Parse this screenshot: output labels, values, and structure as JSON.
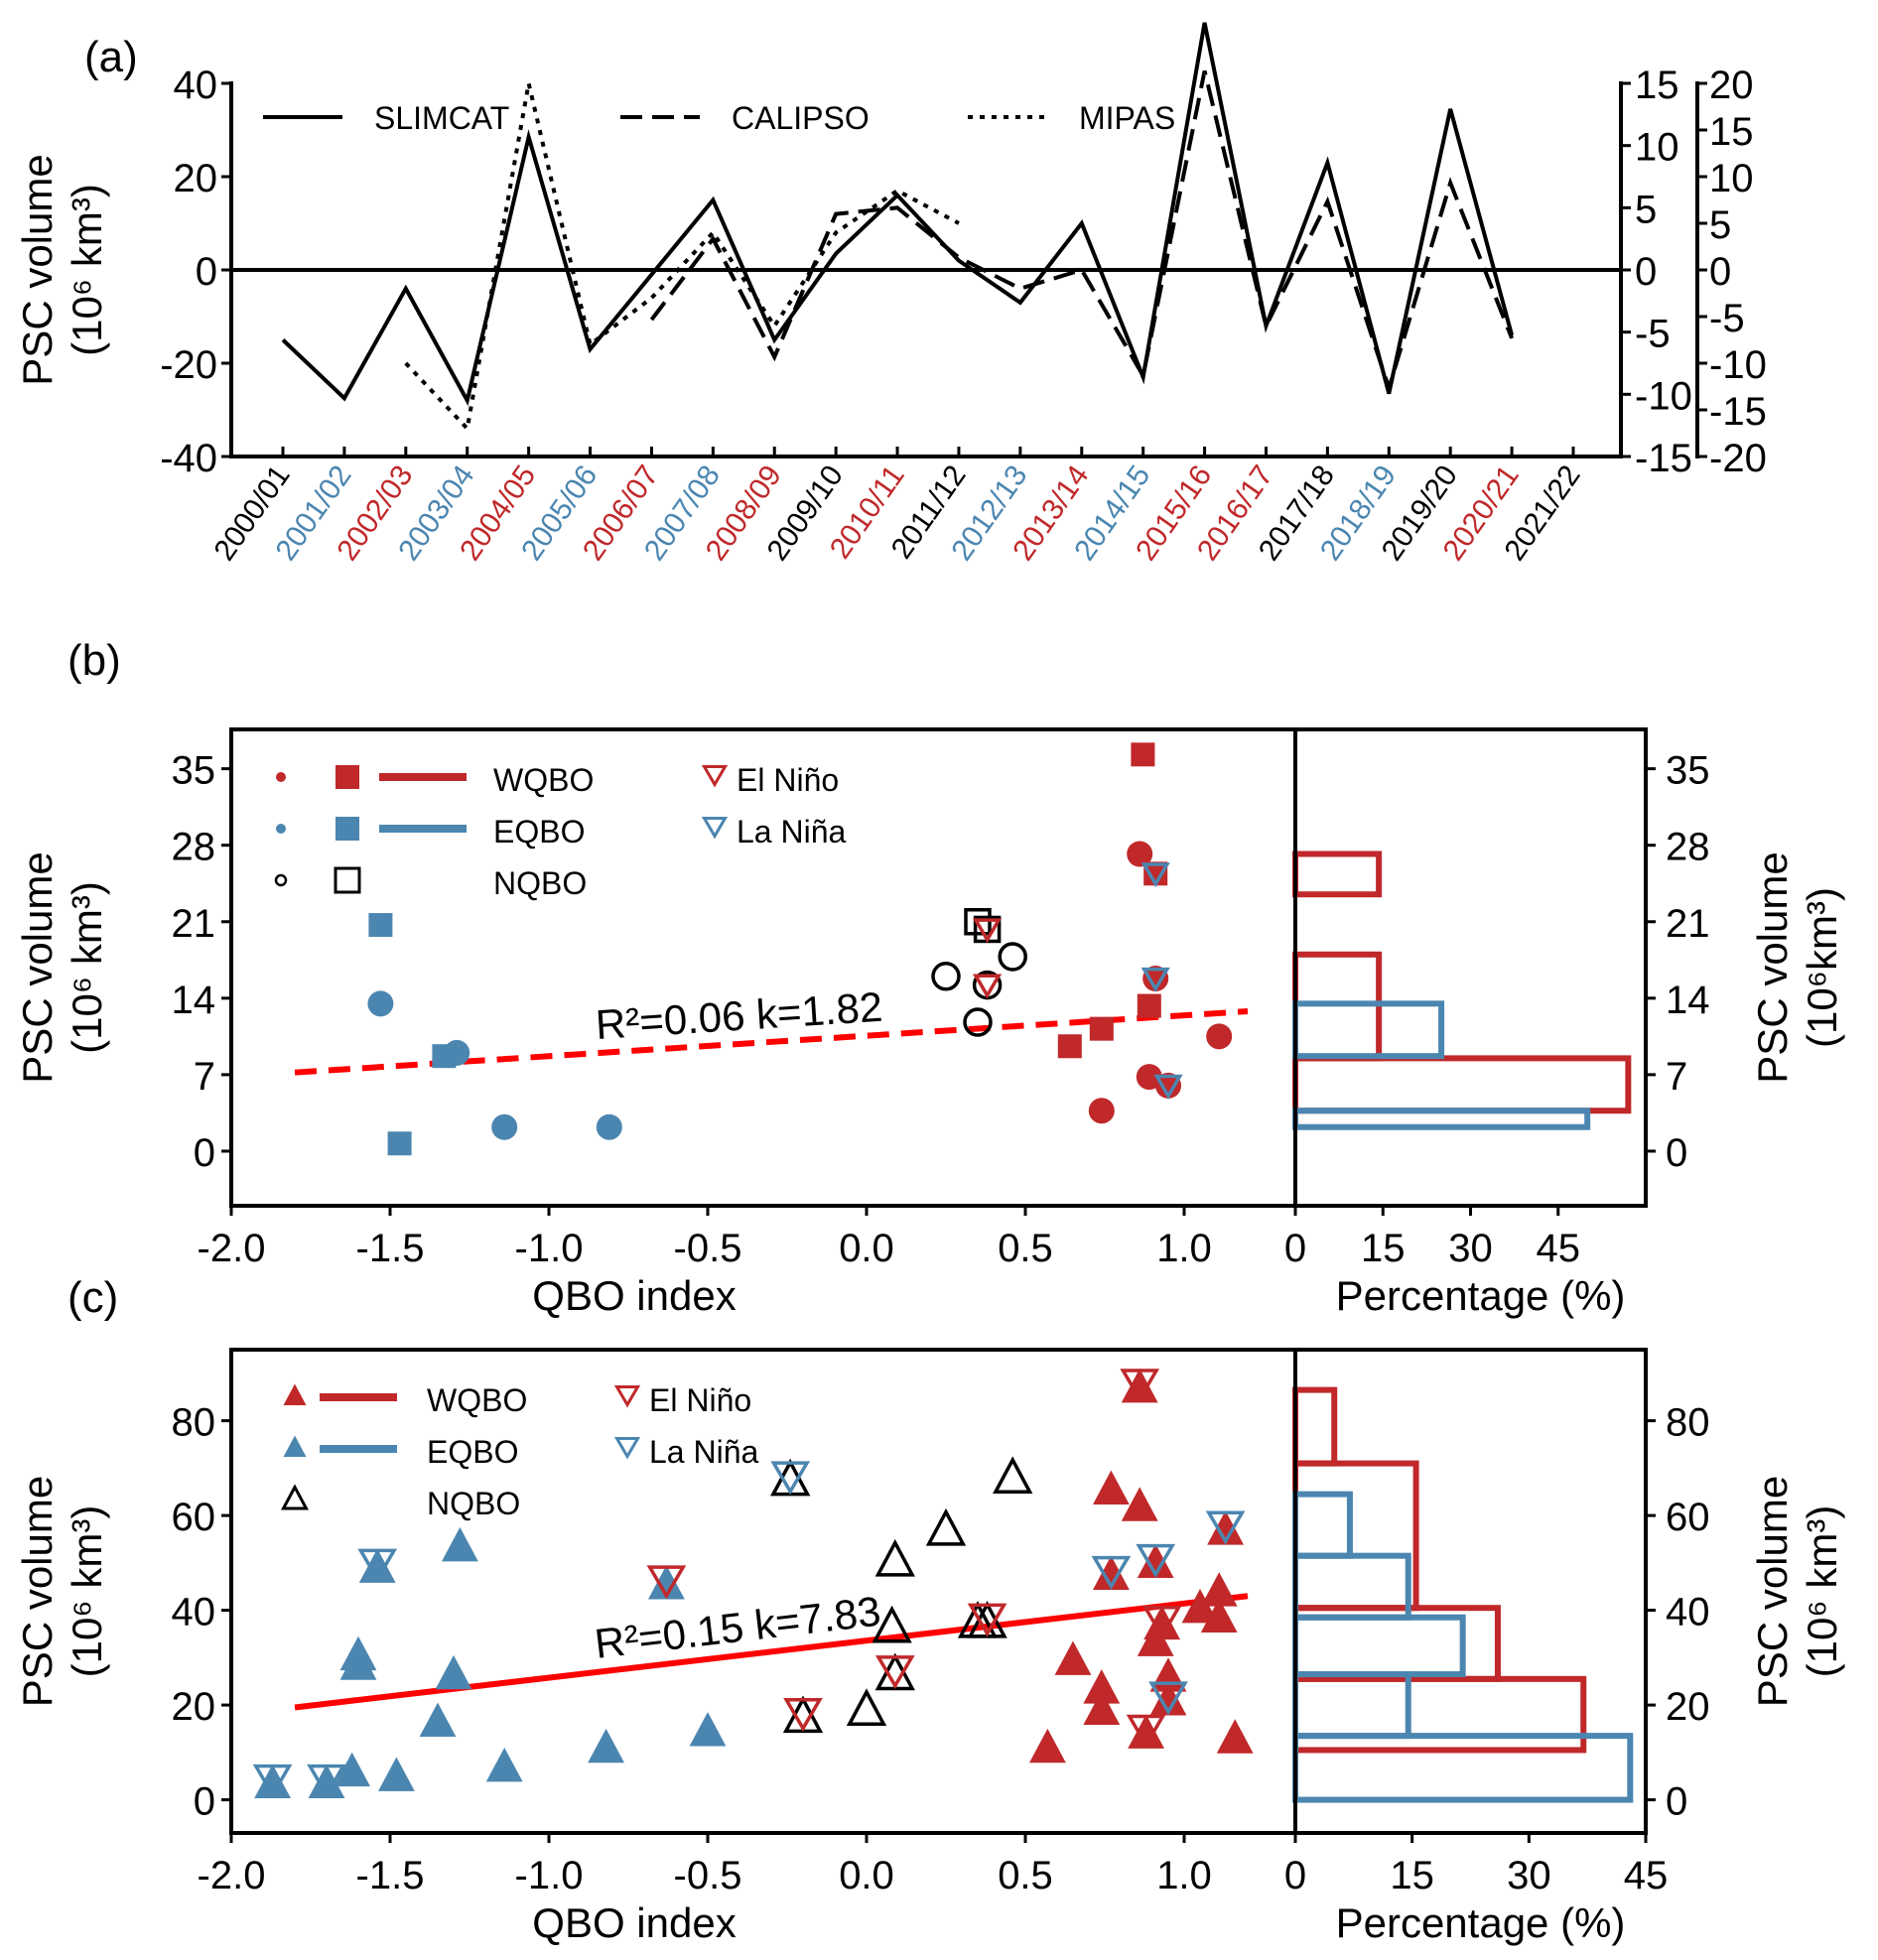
{
  "colors": {
    "warm": "#c0282a",
    "cold": "#4b86b0",
    "neutral": "#000000",
    "fit": "#ff0000"
  },
  "chart_data": [
    {
      "panel": "(a)",
      "type": "line",
      "ylabel": "PSC volume",
      "ylabel_unit": "(10⁶ km³)",
      "ylim": [
        -40,
        40
      ],
      "yticks": [
        "40",
        "20",
        "0",
        "-20",
        "-40"
      ],
      "right_axes": [
        {
          "name": "CALIPSO",
          "ylim": [
            -15,
            15
          ],
          "ticks": [
            "15",
            "10",
            "5",
            "0",
            "-5",
            "-10",
            "-15"
          ]
        },
        {
          "name": "MIPAS",
          "ylim": [
            -20,
            20
          ],
          "ticks": [
            "20",
            "15",
            "10",
            "5",
            "0",
            "-5",
            "-10",
            "-15",
            "-20"
          ]
        }
      ],
      "x": [
        "2000/01",
        "2001/02",
        "2002/03",
        "2003/04",
        "2004/05",
        "2005/06",
        "2006/07",
        "2007/08",
        "2008/09",
        "2009/10",
        "2010/11",
        "2011/12",
        "2012/13",
        "2013/14",
        "2014/15",
        "2015/16",
        "2016/17",
        "2017/18",
        "2018/19",
        "2019/20",
        "2020/21",
        "2021/22"
      ],
      "x_label_colors": [
        "neutral",
        "cold",
        "warm",
        "cold",
        "warm",
        "cold",
        "warm",
        "cold",
        "warm",
        "neutral",
        "warm",
        "neutral",
        "cold",
        "warm",
        "cold",
        "warm",
        "warm",
        "neutral",
        "cold",
        "neutral",
        "warm",
        "neutral"
      ],
      "series": [
        {
          "name": "SLIMCAT",
          "style": "solid",
          "axis": "left",
          "values": [
            -15,
            -27.5,
            -4,
            -28,
            28.5,
            -17,
            -1,
            15,
            -15,
            3.5,
            16,
            2,
            -7,
            10,
            -23,
            53,
            -12,
            23,
            -26.5,
            34.5,
            -14,
            null
          ]
        },
        {
          "name": "CALIPSO",
          "style": "dashed",
          "axis": "right1",
          "values": [
            null,
            null,
            null,
            null,
            null,
            null,
            -4,
            2.5,
            -7,
            4.5,
            5,
            1,
            -1.5,
            0,
            -8.5,
            16,
            -4.5,
            5.5,
            -9.5,
            7,
            -5.5,
            null
          ]
        },
        {
          "name": "MIPAS",
          "style": "dotted",
          "axis": "right2",
          "values": [
            null,
            null,
            -10,
            -17,
            20,
            -8,
            -3,
            4,
            -6,
            4,
            8.5,
            5,
            null,
            null,
            null,
            null,
            null,
            null,
            null,
            null,
            null,
            null
          ]
        }
      ],
      "legend": [
        "SLIMCAT",
        "CALIPSO",
        "MIPAS"
      ],
      "legend_position": "top"
    },
    {
      "panel": "(b)",
      "type": "scatter",
      "xlabel": "QBO index",
      "ylabel": "PSC volume",
      "ylabel_unit": "(10⁶ km³)",
      "xlim": [
        -2.0,
        1.35
      ],
      "ylim": [
        -5,
        38.6
      ],
      "xticks": [
        "-2.0",
        "-1.5",
        "-1.0",
        "-0.5",
        "0.0",
        "0.5",
        "1.0"
      ],
      "yticks": [
        "35",
        "28",
        "21",
        "14",
        "7",
        "0"
      ],
      "fit": {
        "x": [
          -1.8,
          1.2
        ],
        "y": [
          7.2,
          12.8
        ],
        "style": "dashed",
        "label": "R²=0.06  k=1.82",
        "r2": 0.06,
        "k": 1.82
      },
      "legend": [
        {
          "label": "WQBO",
          "color": "warm"
        },
        {
          "label": "EQBO",
          "color": "cold"
        },
        {
          "label": "NQBO",
          "color": "neutral"
        },
        {
          "label": "El Niño",
          "color": "warm",
          "marker": "down-triangle-open"
        },
        {
          "label": "La Niña",
          "color": "cold",
          "marker": "down-triangle-open"
        }
      ],
      "points": [
        {
          "x": -1.53,
          "y": 20.7,
          "m": "square",
          "c": "cold"
        },
        {
          "x": -1.53,
          "y": 13.5,
          "m": "circle",
          "c": "cold"
        },
        {
          "x": -1.33,
          "y": 8.7,
          "m": "square",
          "c": "cold"
        },
        {
          "x": -1.29,
          "y": 9.0,
          "m": "circle",
          "c": "cold"
        },
        {
          "x": -1.47,
          "y": 0.7,
          "m": "square",
          "c": "cold"
        },
        {
          "x": -1.14,
          "y": 2.2,
          "m": "circle",
          "c": "cold"
        },
        {
          "x": -0.81,
          "y": 2.2,
          "m": "circle",
          "c": "cold"
        },
        {
          "x": 0.35,
          "y": 21.0,
          "m": "square-open",
          "c": "neutral"
        },
        {
          "x": 0.38,
          "y": 20.3,
          "m": "square-open",
          "c": "neutral",
          "enso": "warm"
        },
        {
          "x": 0.46,
          "y": 17.8,
          "m": "circle-open",
          "c": "neutral"
        },
        {
          "x": 0.25,
          "y": 16.0,
          "m": "circle-open",
          "c": "neutral"
        },
        {
          "x": 0.38,
          "y": 15.2,
          "m": "circle-open",
          "c": "neutral",
          "enso": "warm"
        },
        {
          "x": 0.35,
          "y": 11.8,
          "m": "circle-open",
          "c": "neutral"
        },
        {
          "x": 0.87,
          "y": 36.3,
          "m": "square",
          "c": "warm"
        },
        {
          "x": 0.86,
          "y": 27.2,
          "m": "circle",
          "c": "warm"
        },
        {
          "x": 0.91,
          "y": 25.4,
          "m": "square",
          "c": "warm",
          "enso": "cold"
        },
        {
          "x": 0.91,
          "y": 15.8,
          "m": "circle",
          "c": "warm",
          "enso": "cold"
        },
        {
          "x": 0.89,
          "y": 13.3,
          "m": "square",
          "c": "warm"
        },
        {
          "x": 0.74,
          "y": 11.2,
          "m": "square",
          "c": "warm"
        },
        {
          "x": 0.64,
          "y": 9.6,
          "m": "square",
          "c": "warm"
        },
        {
          "x": 1.11,
          "y": 10.5,
          "m": "circle",
          "c": "warm"
        },
        {
          "x": 0.89,
          "y": 6.8,
          "m": "circle",
          "c": "warm"
        },
        {
          "x": 0.95,
          "y": 6.0,
          "m": "circle",
          "c": "warm",
          "enso": "cold"
        },
        {
          "x": 0.74,
          "y": 3.7,
          "m": "circle",
          "c": "warm"
        }
      ]
    },
    {
      "panel": "(b) histogram",
      "type": "bar",
      "orientation": "horizontal",
      "xlabel": "Percentage (%)",
      "ylabel": "PSC volume",
      "ylabel_unit": "(10⁶km³)",
      "xlim": [
        0,
        60
      ],
      "xticks": [
        "0",
        "15",
        "30",
        "45"
      ],
      "yticks": [
        "35",
        "28",
        "21",
        "14",
        "7",
        "0"
      ],
      "series": [
        {
          "name": "WQBO",
          "color": "warm",
          "bins": [
            [
              3.7,
              8.5,
              57
            ],
            [
              8.5,
              18.0,
              14.3
            ],
            [
              18.0,
              23.5,
              0
            ],
            [
              23.5,
              27.2,
              14.3
            ]
          ]
        },
        {
          "name": "EQBO",
          "color": "cold",
          "bins": [
            [
              2.2,
              3.7,
              0
            ],
            [
              2.2,
              3.7,
              50
            ],
            [
              8.7,
              13.5,
              25
            ]
          ]
        }
      ]
    },
    {
      "panel": "(c)",
      "type": "scatter",
      "xlabel": "QBO index",
      "ylabel": "PSC volume",
      "ylabel_unit": "(10⁶ km³)",
      "xlim": [
        -2.0,
        1.35
      ],
      "ylim": [
        -7,
        95
      ],
      "xticks": [
        "-2.0",
        "-1.5",
        "-1.0",
        "-0.5",
        "0.0",
        "0.5",
        "1.0"
      ],
      "yticks": [
        "80",
        "60",
        "40",
        "20",
        "0"
      ],
      "fit": {
        "x": [
          -1.8,
          1.2
        ],
        "y": [
          19.5,
          43
        ],
        "style": "solid",
        "label": "R²=0.15  k=7.83",
        "r2": 0.15,
        "k": 7.83
      },
      "legend": [
        {
          "label": "WQBO",
          "color": "warm"
        },
        {
          "label": "EQBO",
          "color": "cold"
        },
        {
          "label": "NQBO",
          "color": "neutral"
        },
        {
          "label": "El Niño",
          "color": "warm",
          "marker": "down-triangle-open"
        },
        {
          "label": "La Niña",
          "color": "cold",
          "marker": "down-triangle-open"
        }
      ],
      "points": [
        {
          "x": -1.87,
          "y": 3,
          "c": "cold",
          "enso": "cold"
        },
        {
          "x": -1.7,
          "y": 3,
          "c": "cold",
          "enso": "cold"
        },
        {
          "x": -1.62,
          "y": 5.5,
          "c": "cold"
        },
        {
          "x": -1.48,
          "y": 4.5,
          "c": "cold"
        },
        {
          "x": -1.14,
          "y": 6.5,
          "c": "cold"
        },
        {
          "x": -1.6,
          "y": 28,
          "c": "cold"
        },
        {
          "x": -1.6,
          "y": 30,
          "c": "cold"
        },
        {
          "x": -1.54,
          "y": 48.5,
          "c": "cold",
          "enso": "cold"
        },
        {
          "x": -1.28,
          "y": 53,
          "c": "cold"
        },
        {
          "x": -1.3,
          "y": 26,
          "c": "cold"
        },
        {
          "x": -1.35,
          "y": 16,
          "c": "cold"
        },
        {
          "x": -0.82,
          "y": 10.5,
          "c": "cold"
        },
        {
          "x": -0.5,
          "y": 14,
          "c": "cold"
        },
        {
          "x": -0.63,
          "y": 45,
          "c": "cold",
          "enso": "warm"
        },
        {
          "x": -0.24,
          "y": 67,
          "c": "neutral",
          "enso": "cold"
        },
        {
          "x": -0.2,
          "y": 17,
          "c": "neutral",
          "enso": "warm"
        },
        {
          "x": 0.0,
          "y": 18.5,
          "c": "neutral"
        },
        {
          "x": 0.08,
          "y": 36,
          "c": "neutral"
        },
        {
          "x": 0.09,
          "y": 26,
          "c": "neutral",
          "enso": "warm"
        },
        {
          "x": 0.09,
          "y": 50,
          "c": "neutral"
        },
        {
          "x": 0.25,
          "y": 56.5,
          "c": "neutral"
        },
        {
          "x": 0.35,
          "y": 37,
          "c": "neutral"
        },
        {
          "x": 0.38,
          "y": 37,
          "c": "neutral",
          "enso": "warm"
        },
        {
          "x": 0.46,
          "y": 67.5,
          "c": "neutral"
        },
        {
          "x": 0.57,
          "y": 10.5,
          "c": "warm"
        },
        {
          "x": 0.65,
          "y": 29,
          "c": "warm"
        },
        {
          "x": 0.74,
          "y": 23,
          "c": "warm"
        },
        {
          "x": 0.74,
          "y": 18.5,
          "c": "warm"
        },
        {
          "x": 0.77,
          "y": 47,
          "c": "warm",
          "enso": "cold"
        },
        {
          "x": 0.77,
          "y": 65,
          "c": "warm"
        },
        {
          "x": 0.86,
          "y": 61.5,
          "c": "warm"
        },
        {
          "x": 0.86,
          "y": 86.5,
          "c": "warm",
          "enso": "warm"
        },
        {
          "x": 0.88,
          "y": 13.5,
          "c": "warm",
          "enso": "warm"
        },
        {
          "x": 0.91,
          "y": 49.5,
          "c": "warm",
          "enso": "cold"
        },
        {
          "x": 0.91,
          "y": 33,
          "c": "warm"
        },
        {
          "x": 0.93,
          "y": 36.5,
          "c": "warm",
          "enso": "warm"
        },
        {
          "x": 0.95,
          "y": 25.5,
          "c": "warm"
        },
        {
          "x": 0.95,
          "y": 20.5,
          "c": "warm",
          "enso": "cold"
        },
        {
          "x": 1.05,
          "y": 40,
          "c": "warm"
        },
        {
          "x": 1.11,
          "y": 43.5,
          "c": "warm"
        },
        {
          "x": 1.11,
          "y": 38,
          "c": "warm"
        },
        {
          "x": 1.13,
          "y": 56.5,
          "c": "warm",
          "enso": "cold"
        },
        {
          "x": 1.16,
          "y": 12.5,
          "c": "warm"
        }
      ]
    },
    {
      "panel": "(c) histogram",
      "type": "bar",
      "orientation": "horizontal",
      "xlabel": "Percentage (%)",
      "ylabel": "PSC volume",
      "ylabel_unit": "(10⁶ km³)",
      "xlim": [
        0,
        45
      ],
      "xticks": [
        "0",
        "15",
        "30",
        "45"
      ],
      "yticks": [
        "80",
        "60",
        "40",
        "20",
        "0"
      ],
      "series": [
        {
          "name": "WQBO",
          "color": "warm",
          "bins": [
            [
              10.5,
              25.5,
              37
            ],
            [
              25.5,
              40.5,
              26
            ],
            [
              40.5,
              71,
              15.5
            ],
            [
              71,
              86.5,
              5
            ]
          ]
        },
        {
          "name": "EQBO",
          "color": "cold",
          "bins": [
            [
              0,
              13.5,
              43
            ],
            [
              13.5,
              26.5,
              14.5
            ],
            [
              26.5,
              38.5,
              21.5
            ],
            [
              38.5,
              51.5,
              14.5
            ],
            [
              51.5,
              64.5,
              7
            ]
          ]
        }
      ]
    }
  ]
}
